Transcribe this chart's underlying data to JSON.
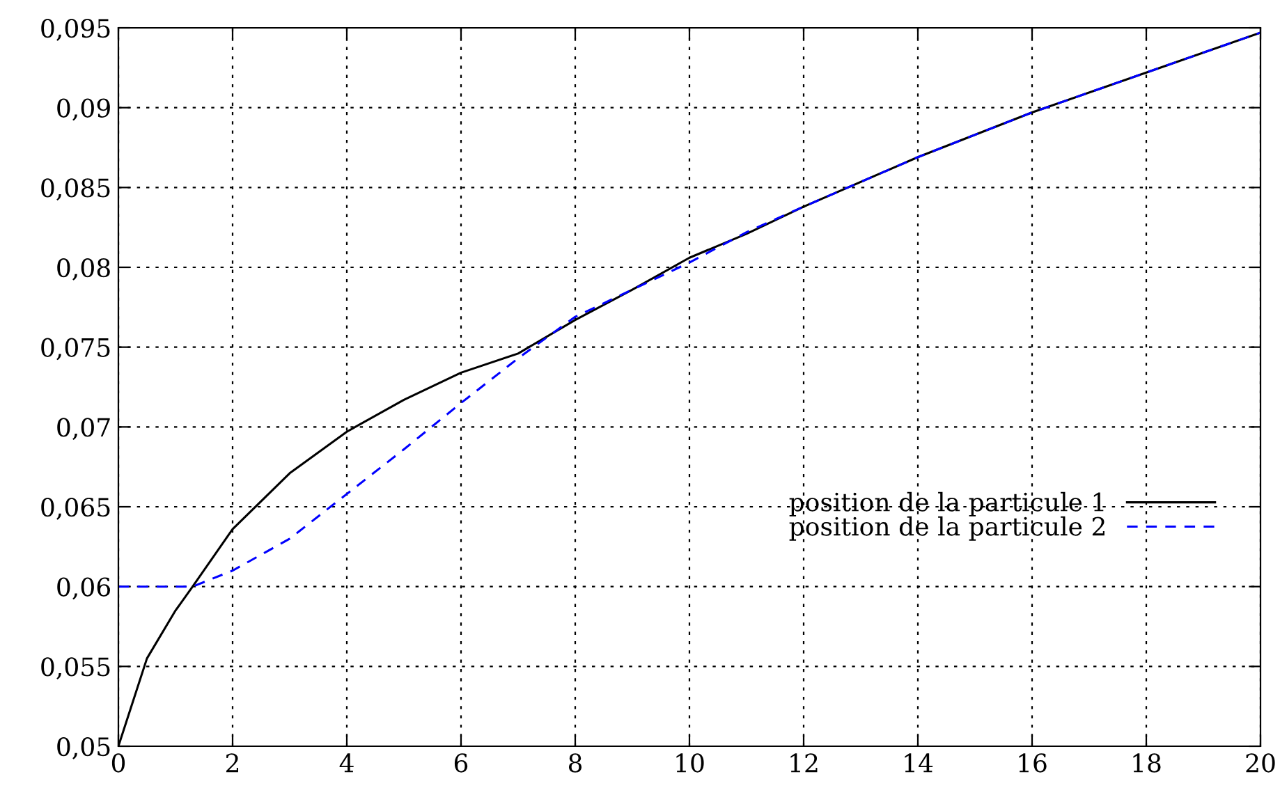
{
  "chart_data": {
    "type": "line",
    "xlim": [
      0,
      20
    ],
    "ylim": [
      0.05,
      0.095
    ],
    "xticks": [
      0,
      2,
      4,
      6,
      8,
      10,
      12,
      14,
      16,
      18,
      20
    ],
    "yticks": [
      {
        "value": 0.05,
        "label": "0,05"
      },
      {
        "value": 0.055,
        "label": "0,055"
      },
      {
        "value": 0.06,
        "label": "0,06"
      },
      {
        "value": 0.065,
        "label": "0,065"
      },
      {
        "value": 0.07,
        "label": "0,07"
      },
      {
        "value": 0.075,
        "label": "0,075"
      },
      {
        "value": 0.08,
        "label": "0,08"
      },
      {
        "value": 0.085,
        "label": "0,085"
      },
      {
        "value": 0.09,
        "label": "0,09"
      },
      {
        "value": 0.095,
        "label": "0,095"
      }
    ],
    "grid": true,
    "legend": "right",
    "series": [
      {
        "name": "position de la particule 1",
        "color": "#000000",
        "line_style": "solid",
        "x": [
          0,
          0.5,
          1,
          1.3,
          2,
          3,
          4,
          5,
          6,
          7,
          8,
          9,
          10,
          11,
          12,
          14,
          16,
          18,
          20
        ],
        "values": [
          0.05,
          0.0555,
          0.0585,
          0.06,
          0.0636,
          0.0671,
          0.0697,
          0.0717,
          0.0734,
          0.0746,
          0.0767,
          0.0786,
          0.0806,
          0.0821,
          0.0838,
          0.0869,
          0.0897,
          0.0922,
          0.0947
        ]
      },
      {
        "name": "position de la particule 2",
        "color": "#0000ff",
        "line_style": "dashed",
        "x": [
          0,
          1.3,
          2,
          3,
          4,
          5,
          6,
          7,
          8,
          9,
          10,
          11,
          12,
          14,
          16,
          18,
          20
        ],
        "values": [
          0.06,
          0.06,
          0.061,
          0.063,
          0.0658,
          0.0686,
          0.0715,
          0.0743,
          0.0769,
          0.0786,
          0.0803,
          0.0822,
          0.0838,
          0.0869,
          0.0897,
          0.0922,
          0.0947
        ]
      }
    ]
  }
}
